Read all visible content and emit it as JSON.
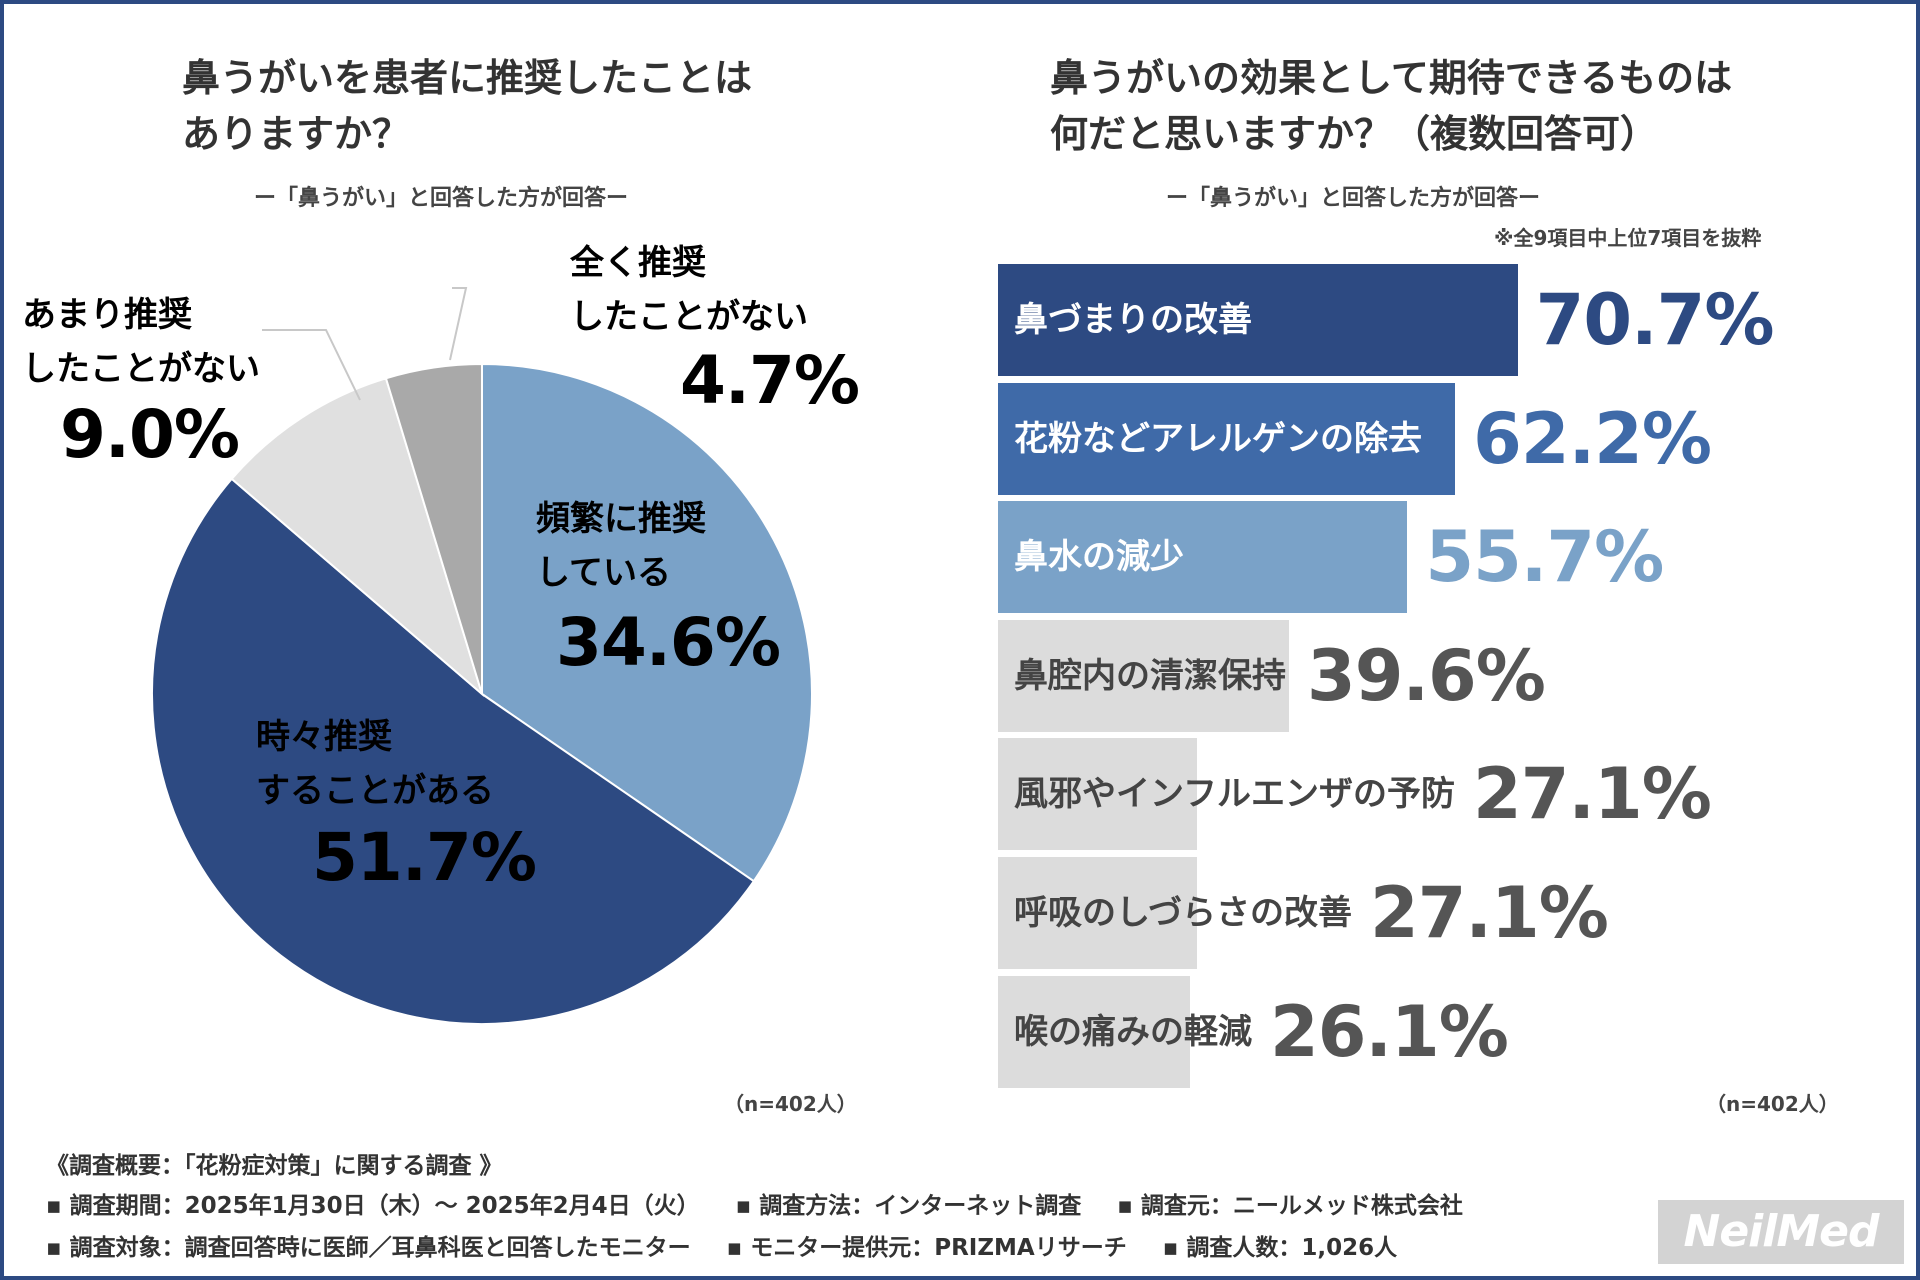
{
  "left": {
    "title_line1": "鼻うがいを患者に推奨したことは",
    "title_line2": "ありますか？",
    "subtitle": "ー「鼻うがい」と回答した方が回答ー",
    "n_label": "（n=402人）"
  },
  "right": {
    "title_line1": "鼻うがいの効果として期待できるものは",
    "title_line2": "何だと思いますか？（複数回答可）",
    "subtitle": "ー「鼻うがい」と回答した方が回答ー",
    "note": "※全9項目中上位7項目を抜粋",
    "n_label": "（n=402人）"
  },
  "chart_data": [
    {
      "type": "pie",
      "title": "鼻うがいを患者に推奨したことはありますか？",
      "slices": [
        {
          "label_line1": "頻繁に推奨",
          "label_line2": "している",
          "value": 34.6,
          "value_text": "34.6%",
          "color": "#7aa2c8",
          "text_color": "#ffffff"
        },
        {
          "label_line1": "時々推奨",
          "label_line2": "することがある",
          "value": 51.7,
          "value_text": "51.7%",
          "color": "#2d4a82",
          "text_color": "#ffffff"
        },
        {
          "label_line1": "あまり推奨",
          "label_line2": "したことがない",
          "value": 9.0,
          "value_text": "9.0%",
          "color": "#e0e0e0",
          "text_color": "#555555"
        },
        {
          "label_line1": "全く推奨",
          "label_line2": "したことがない",
          "value": 4.7,
          "value_text": "4.7%",
          "color": "#a9a9a9",
          "text_color": "#555555"
        }
      ]
    },
    {
      "type": "bar",
      "orientation": "horizontal",
      "title": "鼻うがいの効果として期待できるものは何だと思いますか？（複数回答可）",
      "xlim": [
        0,
        100
      ],
      "categories": [
        "鼻づまりの改善",
        "花粉などアレルゲンの除去",
        "鼻水の減少",
        "鼻腔内の清潔保持",
        "風邪やインフルエンザの予防",
        "呼吸のしづらさの改善",
        "喉の痛みの軽減"
      ],
      "values": [
        70.7,
        62.2,
        55.7,
        39.6,
        27.1,
        27.1,
        26.1
      ],
      "value_texts": [
        "70.7%",
        "62.2%",
        "55.7%",
        "39.6%",
        "27.1%",
        "27.1%",
        "26.1%"
      ],
      "bar_colors": [
        "#2d4a82",
        "#3f6aa8",
        "#7aa2c8",
        "#dcdcdc",
        "#dcdcdc",
        "#dcdcdc",
        "#dcdcdc"
      ],
      "label_colors": [
        "#ffffff",
        "#ffffff",
        "#ffffff",
        "#444444",
        "#444444",
        "#444444",
        "#444444"
      ],
      "value_colors": [
        "#2d4a82",
        "#3f6aa8",
        "#7aa2c8",
        "#555555",
        "#555555",
        "#555555",
        "#555555"
      ]
    }
  ],
  "footer": {
    "heading": "《調査概要：「花粉症対策」に関する調査 》",
    "line1": [
      "▪ 調査期間：2025年1月30日（木）～ 2025年2月4日（火）",
      "▪ 調査方法：インターネット調査",
      "▪ 調査元：ニールメッド株式会社"
    ],
    "line2": [
      "▪ 調査対象：調査回答時に医師／耳鼻科医と回答したモニター",
      "▪ モニター提供元：PRIZMAリサーチ",
      "▪ 調査人数：1,026人"
    ]
  },
  "logo": "NeilMed"
}
